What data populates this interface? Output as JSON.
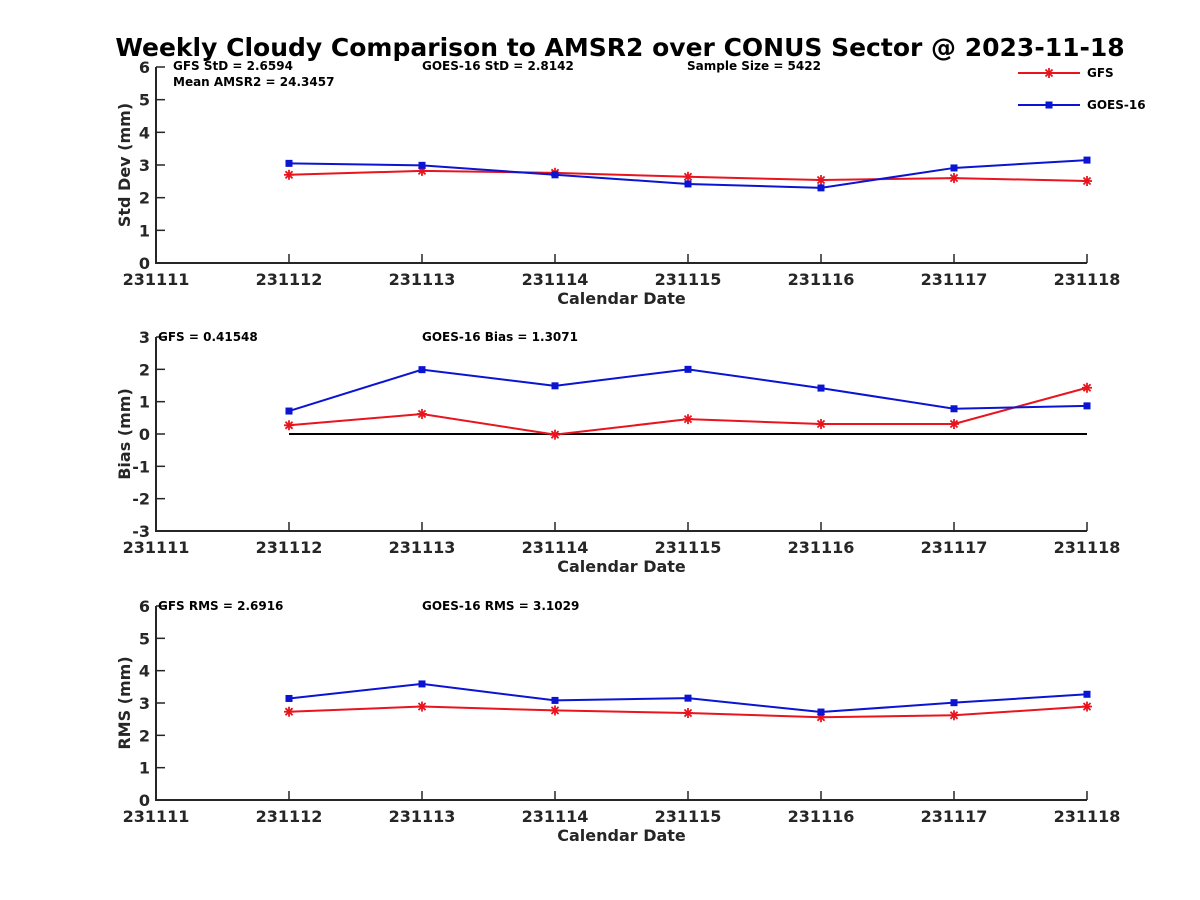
{
  "title": "Weekly Cloudy Comparison to AMSR2 over CONUS Sector @ 2023-11-18",
  "colors": {
    "GFS": "#e8141e",
    "GOES-16": "#0a14d2",
    "zero_line": "#000000"
  },
  "legend": {
    "placement": "top-right",
    "entries": [
      "GFS",
      "GOES-16"
    ]
  },
  "chart_data": [
    {
      "type": "line",
      "xlabel": "Calendar Date",
      "ylabel": "Std Dev (mm)",
      "categories": [
        "231111",
        "231112",
        "231113",
        "231114",
        "231115",
        "231116",
        "231117",
        "231118"
      ],
      "ylim": [
        0,
        6
      ],
      "yticks": [
        "0",
        "1",
        "2",
        "3",
        "4",
        "5",
        "6"
      ],
      "grid": false,
      "annotations": [
        "GFS StD = 2.6594",
        "Mean AMSR2 = 24.3457",
        "GOES-16 StD = 2.8142",
        "Sample Size = 5422"
      ],
      "series": [
        {
          "name": "GFS",
          "marker": "asterisk",
          "values": [
            null,
            2.7,
            2.82,
            2.76,
            2.64,
            2.54,
            2.6,
            2.51
          ]
        },
        {
          "name": "GOES-16",
          "marker": "square",
          "values": [
            null,
            3.05,
            2.99,
            2.7,
            2.42,
            2.3,
            2.91,
            3.15
          ]
        }
      ]
    },
    {
      "type": "line",
      "xlabel": "Calendar Date",
      "ylabel": "Bias (mm)",
      "categories": [
        "231111",
        "231112",
        "231113",
        "231114",
        "231115",
        "231116",
        "231117",
        "231118"
      ],
      "ylim": [
        -3,
        3
      ],
      "yticks": [
        "-3",
        "-2",
        "-1",
        "0",
        "1",
        "2",
        "3"
      ],
      "grid": false,
      "zero_line": true,
      "annotations": [
        "GFS = 0.41548",
        "GOES-16 Bias  = 1.3071"
      ],
      "series": [
        {
          "name": "GFS",
          "marker": "asterisk",
          "values": [
            null,
            0.27,
            0.62,
            -0.02,
            0.46,
            0.31,
            0.31,
            1.43
          ]
        },
        {
          "name": "GOES-16",
          "marker": "square",
          "values": [
            null,
            0.71,
            1.99,
            1.49,
            2.0,
            1.42,
            0.78,
            0.87
          ]
        }
      ]
    },
    {
      "type": "line",
      "xlabel": "Calendar Date",
      "ylabel": "RMS (mm)",
      "categories": [
        "231111",
        "231112",
        "231113",
        "231114",
        "231115",
        "231116",
        "231117",
        "231118"
      ],
      "ylim": [
        0,
        6
      ],
      "yticks": [
        "0",
        "1",
        "2",
        "3",
        "4",
        "5",
        "6"
      ],
      "grid": false,
      "annotations": [
        "GFS RMS = 2.6916",
        "GOES-16 RMS = 3.1029"
      ],
      "series": [
        {
          "name": "GFS",
          "marker": "asterisk",
          "values": [
            null,
            2.73,
            2.89,
            2.77,
            2.69,
            2.56,
            2.62,
            2.89
          ]
        },
        {
          "name": "GOES-16",
          "marker": "square",
          "values": [
            null,
            3.14,
            3.59,
            3.08,
            3.15,
            2.72,
            3.01,
            3.27
          ]
        }
      ]
    }
  ]
}
